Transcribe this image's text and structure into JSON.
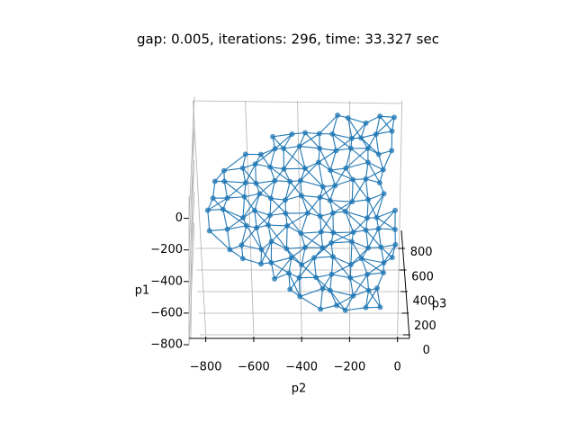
{
  "chart_data": {
    "type": "mesh3d",
    "title": "gap: 0.005, iterations: 296, time: 33.327 sec",
    "xlabel": "p2",
    "ylabel": "p3",
    "zlabel": "p1",
    "color": "#1f77b4",
    "xlim": [
      -870,
      50
    ],
    "ylim": [
      -30,
      960
    ],
    "zlim": [
      -800,
      140
    ],
    "xticks": [
      {
        "value": -800,
        "label": "−800"
      },
      {
        "value": -600,
        "label": "−600"
      },
      {
        "value": -400,
        "label": "−400"
      },
      {
        "value": -200,
        "label": "−200"
      },
      0
    ],
    "yticks": [
      0,
      200,
      400,
      600,
      800
    ],
    "zticks": [
      {
        "value": -800,
        "label": "−800"
      },
      {
        "value": -600,
        "label": "−600"
      },
      {
        "value": -400,
        "label": "−400"
      },
      {
        "value": -200,
        "label": "−200"
      },
      0
    ],
    "grid": true
  }
}
